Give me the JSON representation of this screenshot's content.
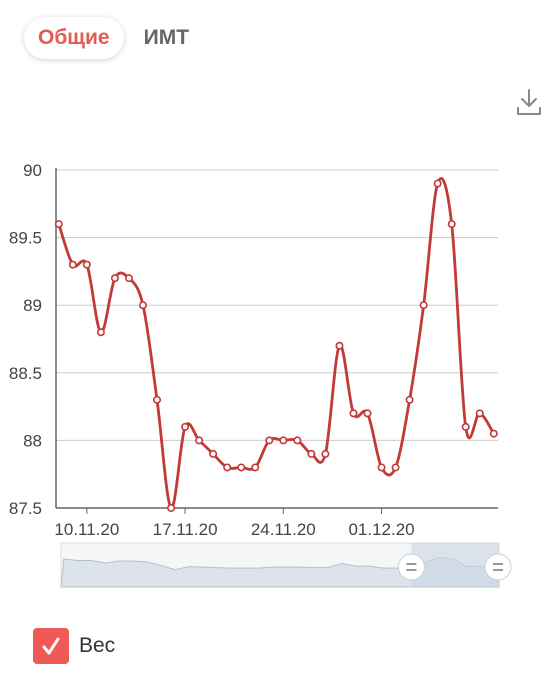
{
  "tabs": [
    {
      "label": "Общие",
      "active": true
    },
    {
      "label": "ИМТ",
      "active": false
    }
  ],
  "toolbar": {
    "download_icon": "download-icon"
  },
  "legend": {
    "label": "Вес",
    "checked": true,
    "color": "#ef5a56"
  },
  "colors": {
    "line": "#c23a37",
    "grid": "#cccccc",
    "accent": "#e25c55",
    "navigator_fill": "#dde3ea",
    "navigator_selected": "#c9d5e3"
  },
  "navigator": {
    "selected_from": 0.8,
    "selected_to": 1.0
  },
  "chart_data": {
    "type": "line",
    "ylim": [
      87.5,
      90
    ],
    "y_ticks": [
      "90",
      "89.5",
      "89",
      "88.5",
      "88",
      "87.5"
    ],
    "x_ticks": [
      {
        "label": "10.11.20",
        "day": 10
      },
      {
        "label": "17.11.20",
        "day": 17
      },
      {
        "label": "24.11.20",
        "day": 24
      },
      {
        "label": "01.12.20",
        "day": 31
      }
    ],
    "x_range_days": [
      7.8,
      39.3
    ],
    "points": [
      {
        "day": 8,
        "y": 89.6
      },
      {
        "day": 9,
        "y": 89.3
      },
      {
        "day": 10,
        "y": 89.3
      },
      {
        "day": 11,
        "y": 88.8
      },
      {
        "day": 12,
        "y": 89.2
      },
      {
        "day": 13,
        "y": 89.2
      },
      {
        "day": 14,
        "y": 89.0
      },
      {
        "day": 15,
        "y": 88.3
      },
      {
        "day": 16,
        "y": 87.5
      },
      {
        "day": 17,
        "y": 88.1
      },
      {
        "day": 18,
        "y": 88.0
      },
      {
        "day": 19,
        "y": 87.9
      },
      {
        "day": 20,
        "y": 87.8
      },
      {
        "day": 21,
        "y": 87.8
      },
      {
        "day": 22,
        "y": 87.8
      },
      {
        "day": 23,
        "y": 88.0
      },
      {
        "day": 24,
        "y": 88.0
      },
      {
        "day": 25,
        "y": 88.0
      },
      {
        "day": 26,
        "y": 87.9
      },
      {
        "day": 27,
        "y": 87.9
      },
      {
        "day": 28,
        "y": 88.7
      },
      {
        "day": 29,
        "y": 88.2
      },
      {
        "day": 30,
        "y": 88.2
      },
      {
        "day": 31,
        "y": 87.8
      },
      {
        "day": 32,
        "y": 87.8
      },
      {
        "day": 33,
        "y": 88.3
      },
      {
        "day": 34,
        "y": 89.0
      },
      {
        "day": 35,
        "y": 89.9
      },
      {
        "day": 36,
        "y": 89.6
      },
      {
        "day": 37,
        "y": 88.1
      },
      {
        "day": 38,
        "y": 88.2
      },
      {
        "day": 39,
        "y": 88.05
      }
    ]
  }
}
